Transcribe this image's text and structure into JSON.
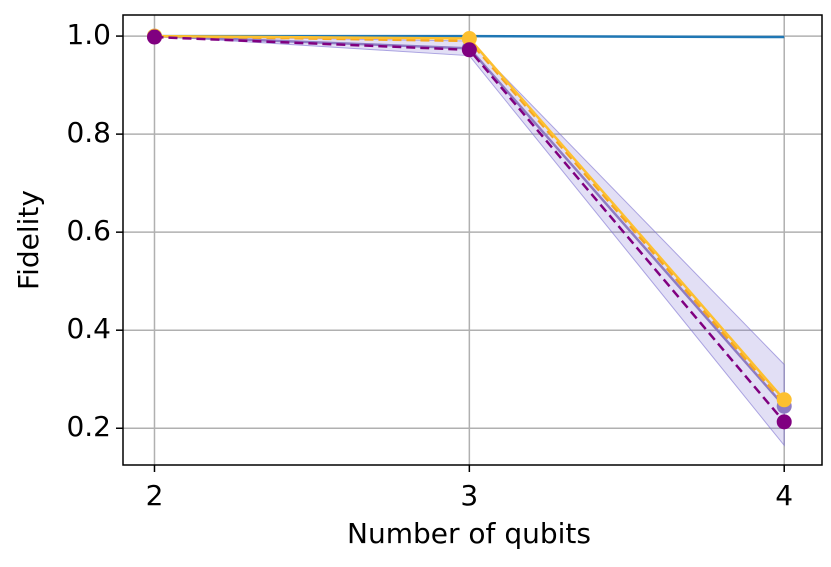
{
  "chart_data": {
    "type": "line",
    "x_label": "Number of qubits",
    "y_label": "Fidelity",
    "x": [
      2,
      3,
      4
    ],
    "xlim": [
      1.9,
      4.12
    ],
    "xticks": [
      2,
      3,
      4
    ],
    "ylim": [
      0.125,
      1.043
    ],
    "yticks": [
      0.2,
      0.4,
      0.6,
      0.8,
      {
        "value": 1,
        "label": "1.0"
      }
    ],
    "grid": true,
    "series": [
      {
        "color": "#1f77b4",
        "dashed": false,
        "marker": false,
        "values": [
          1.0,
          1.0,
          0.998
        ]
      },
      {
        "color": "#8e7cc3",
        "dashed": false,
        "marker": true,
        "values": [
          1.0,
          0.975,
          0.245
        ],
        "band": {
          "color": "#7b6fd0",
          "upper": [
            1.0,
            0.99,
            0.33
          ],
          "lower": [
            1.0,
            0.96,
            0.165
          ]
        }
      },
      {
        "color": "#f5a623",
        "dashed": true,
        "marker": false,
        "values": [
          1.0,
          0.99,
          0.25
        ]
      },
      {
        "color": "#fdc02f",
        "dashed": false,
        "marker": true,
        "values": [
          1.0,
          0.995,
          0.258
        ]
      },
      {
        "color": "#800080",
        "dashed": true,
        "marker": true,
        "values": [
          0.998,
          0.972,
          0.213
        ]
      }
    ]
  }
}
